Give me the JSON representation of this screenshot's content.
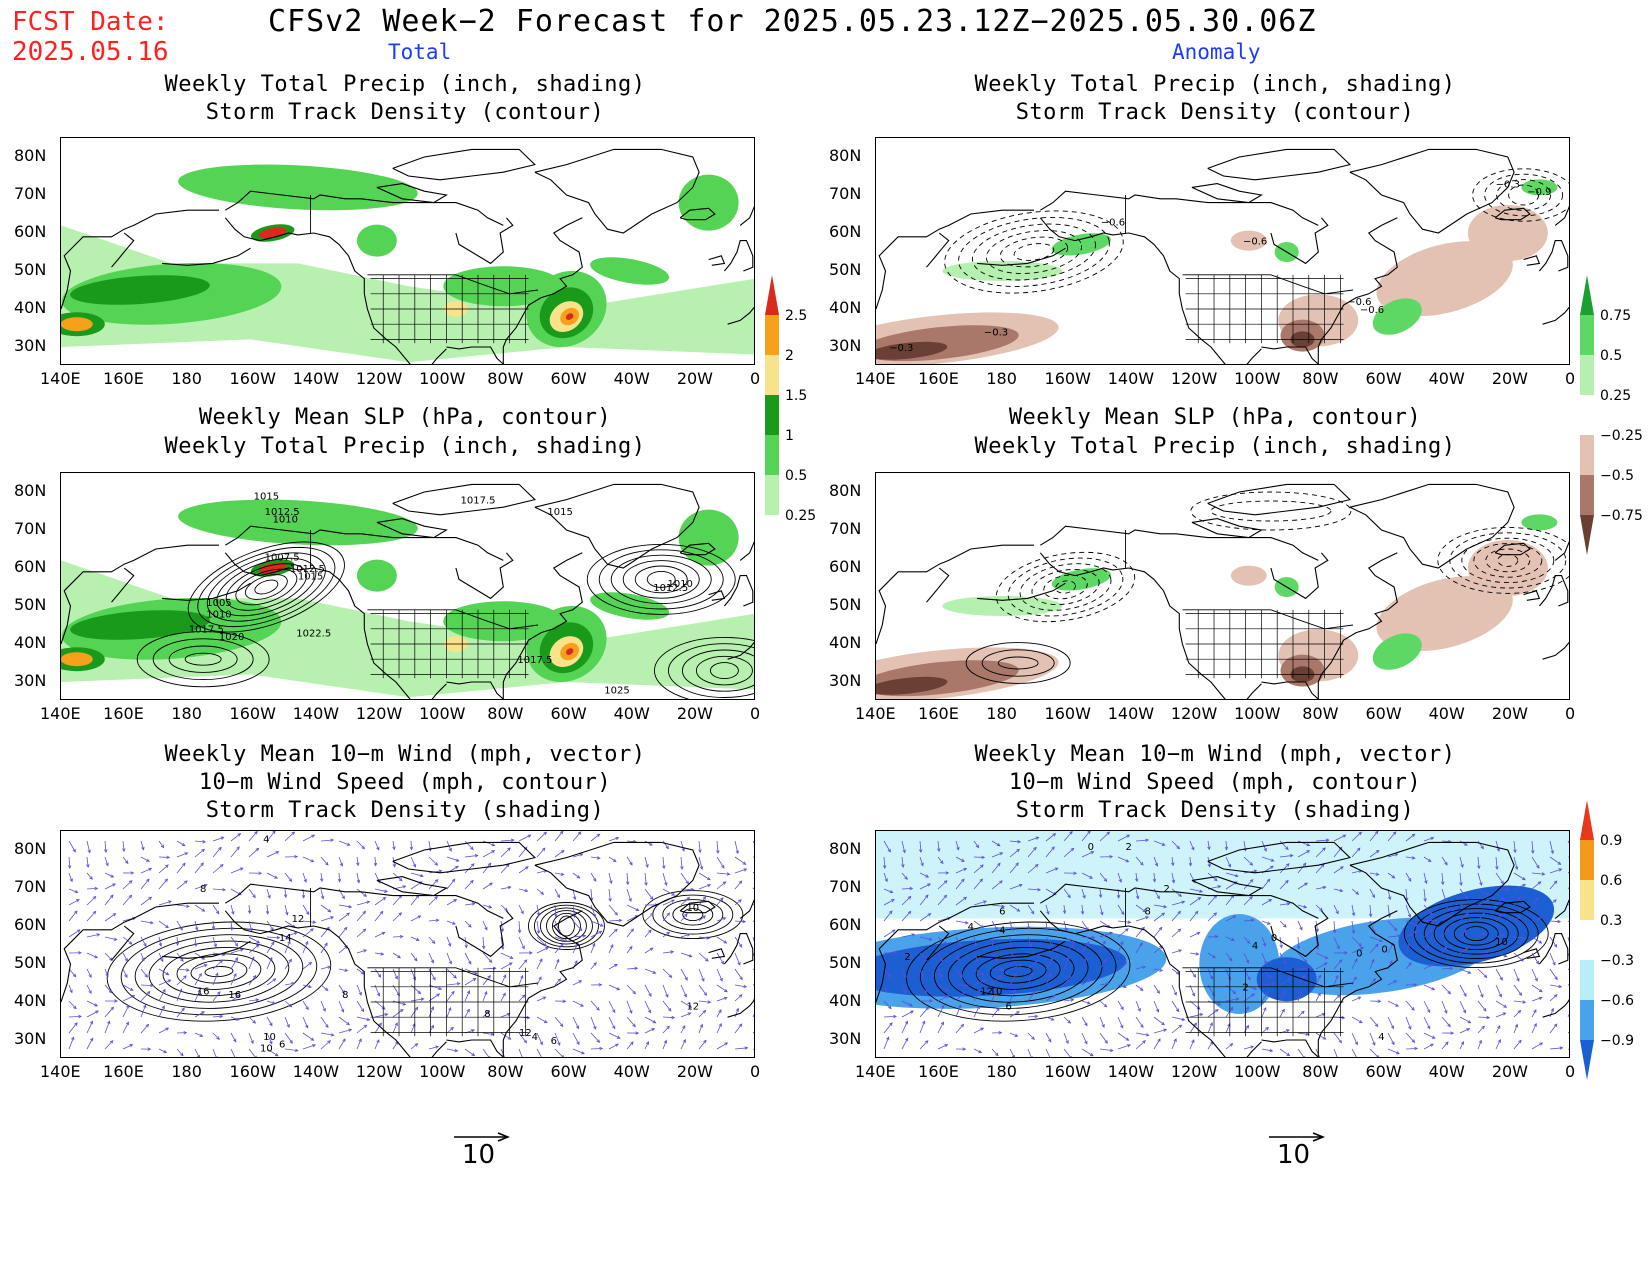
{
  "header": {
    "fcst_label": "FCST Date:",
    "fcst_date": "2025.05.16",
    "title": "CFSv2 Week−2 Forecast for 2025.05.23.12Z−2025.05.30.06Z",
    "col_total": "Total",
    "col_anomaly": "Anomaly"
  },
  "panels": {
    "p1": {
      "line1": "Weekly Total Precip (inch, shading)",
      "line2": "Storm Track Density (contour)",
      "line3": ""
    },
    "p2": {
      "line1": "Weekly Total Precip (inch, shading)",
      "line2": "Storm Track Density (contour)",
      "line3": ""
    },
    "p3": {
      "line1": "Weekly Mean SLP (hPa, contour)",
      "line2": "Weekly Total Precip (inch, shading)",
      "line3": ""
    },
    "p4": {
      "line1": "Weekly Mean SLP (hPa, contour)",
      "line2": "Weekly Total Precip (inch, shading)",
      "line3": ""
    },
    "p5": {
      "line1": "Weekly Mean 10−m Wind (mph, vector)",
      "line2": "10−m Wind Speed (mph, contour)",
      "line3": "Storm Track Density (shading)"
    },
    "p6": {
      "line1": "Weekly Mean 10−m Wind (mph, vector)",
      "line2": "10−m Wind Speed (mph, contour)",
      "line3": "Storm Track Density (shading)"
    }
  },
  "axes": {
    "lon_ticks": [
      "140E",
      "160E",
      "180",
      "160W",
      "140W",
      "120W",
      "100W",
      "80W",
      "60W",
      "40W",
      "20W",
      "0"
    ],
    "lat_ticks": [
      "80N",
      "70N",
      "60N",
      "50N",
      "40N",
      "30N"
    ]
  },
  "colorbars": {
    "total_precip": {
      "labels": [
        "2.5",
        "2",
        "1.5",
        "1",
        "0.5",
        "0.25"
      ],
      "colors": [
        "#d92a1b",
        "#f7a11a",
        "#f8e38b",
        "#1a9a1a",
        "#55d355",
        "#b8f0b0"
      ]
    },
    "anomaly_precip": {
      "labels": [
        "0.75",
        "0.5",
        "0.25",
        "−0.25",
        "−0.5",
        "−0.75"
      ],
      "colors": [
        "#19a030",
        "#5ed864",
        "#b6f0b0",
        "#ffffff",
        "#e3c2b4",
        "#a9786a",
        "#6b4034"
      ]
    },
    "anomaly_storm": {
      "labels": [
        "0.9",
        "0.6",
        "0.3",
        "−0.3",
        "−0.6",
        "−0.9"
      ],
      "colors": [
        "#e8381c",
        "#f49a1a",
        "#f8e38b",
        "#ffffff",
        "#b9eef8",
        "#4aa3ea",
        "#1b5fd2"
      ]
    }
  },
  "vector_reference": {
    "left": "10",
    "right": "10"
  },
  "contour_labels": {
    "p3": [
      "1015",
      "1012.5",
      "1010",
      "1017.5",
      "1015",
      "1007.5",
      "1012.5",
      "1015",
      "1005",
      "1010",
      "1017.5",
      "1020",
      "1022.5",
      "1012.5",
      "1010",
      "1017.5",
      "1025"
    ],
    "p2": [
      "−0.6",
      "−0.6",
      "−0.3",
      "−0.9",
      "−0.3",
      "−0.6",
      "−0.6",
      "−0.3"
    ],
    "p5": [
      "8",
      "4",
      "10",
      "12",
      "14",
      "16",
      "16",
      "8",
      "8",
      "12",
      "10",
      "6",
      "10",
      "12",
      "4",
      "6"
    ],
    "p6": [
      "0",
      "2",
      "4",
      "6",
      "8",
      "2",
      "4",
      "2",
      "12",
      "10",
      "6",
      "0",
      "4",
      "0",
      "10",
      "2",
      "0",
      "4"
    ]
  }
}
